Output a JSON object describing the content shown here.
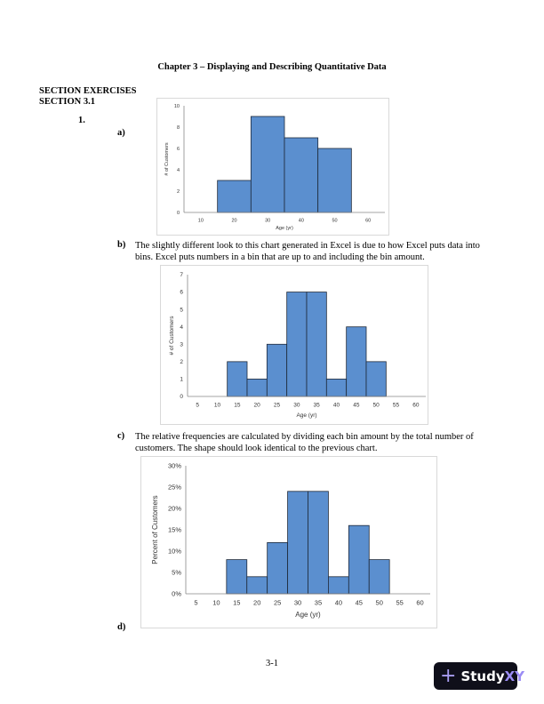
{
  "header": {
    "title": "Chapter 3 – Displaying and Describing Quantitative Data"
  },
  "sections": {
    "exercises": "SECTION EXERCISES",
    "section": "SECTION 3.1"
  },
  "problem": {
    "number": "1."
  },
  "parts": {
    "a": {
      "label": "a)"
    },
    "b": {
      "label": "b)",
      "text": "The slightly different look to this chart generated in Excel is due to how Excel puts data into bins. Excel puts numbers in a bin that are up to and including the bin amount."
    },
    "c": {
      "label": "c)",
      "text": "The relative frequencies are calculated by dividing each bin amount by the total number of customers. The shape should look identical to the previous chart."
    },
    "d": {
      "label": "d)"
    }
  },
  "footer": {
    "page_number": "3-1"
  },
  "watermark": {
    "brand_main": "Study",
    "brand_accent": "XY",
    "icon": "plus-icon"
  },
  "colors": {
    "bar_fill": "#5b8fcf",
    "bar_stroke": "#1f2a3a",
    "axis": "#888888"
  },
  "chart_data": [
    {
      "type": "bar",
      "title": "",
      "xlabel": "Age (yr)",
      "ylabel": "# of Customers",
      "categories": [
        "10",
        "20",
        "30",
        "40",
        "50",
        "60"
      ],
      "values": [
        0,
        3,
        9,
        7,
        6,
        0
      ],
      "yticks": [
        "0",
        "2",
        "4",
        "6",
        "8",
        "10"
      ],
      "ylim": [
        0,
        10
      ],
      "grid": false
    },
    {
      "type": "bar",
      "title": "",
      "xlabel": "Age (yr)",
      "ylabel": "# of Customers",
      "categories": [
        "5",
        "10",
        "15",
        "20",
        "25",
        "30",
        "35",
        "40",
        "45",
        "50",
        "55",
        "60"
      ],
      "values": [
        0,
        0,
        2,
        1,
        3,
        6,
        6,
        1,
        4,
        2,
        0,
        0
      ],
      "yticks": [
        "0",
        "1",
        "2",
        "3",
        "4",
        "5",
        "6",
        "7"
      ],
      "ylim": [
        0,
        7
      ],
      "grid": false
    },
    {
      "type": "bar",
      "title": "",
      "xlabel": "Age (yr)",
      "ylabel": "Percent of Customers",
      "categories": [
        "5",
        "10",
        "15",
        "20",
        "25",
        "30",
        "35",
        "40",
        "45",
        "50",
        "55",
        "60"
      ],
      "values": [
        0,
        0,
        8,
        4,
        12,
        24,
        24,
        4,
        16,
        8,
        0,
        0
      ],
      "yticks": [
        "0%",
        "5%",
        "10%",
        "15%",
        "20%",
        "25%",
        "30%"
      ],
      "ylim": [
        0,
        30
      ],
      "grid": false
    }
  ]
}
